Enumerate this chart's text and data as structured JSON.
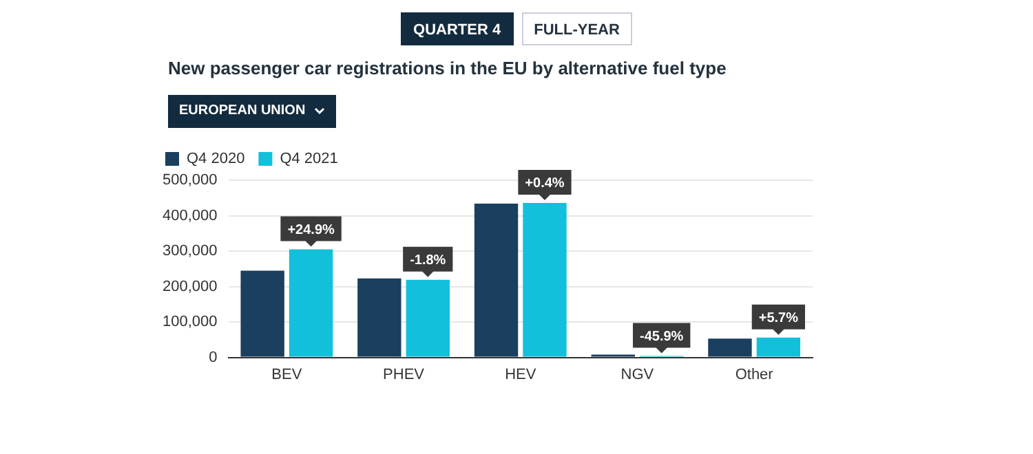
{
  "chart_data": {
    "type": "bar",
    "title": "New passenger car registrations in the EU by alternative fuel type",
    "categories": [
      "BEV",
      "PHEV",
      "HEV",
      "NGV",
      "Other"
    ],
    "series": [
      {
        "name": "Q4 2020",
        "color": "#1b3f5e",
        "values": [
          245000,
          223000,
          434000,
          8000,
          53000
        ]
      },
      {
        "name": "Q4 2021",
        "color": "#12c0dc",
        "values": [
          305000,
          219000,
          436000,
          4000,
          56000
        ]
      }
    ],
    "ylim": [
      0,
      500000
    ],
    "yticks": [
      {
        "value": 0,
        "label": "0"
      },
      {
        "value": 100000,
        "label": "100,000"
      },
      {
        "value": 200000,
        "label": "200,000"
      },
      {
        "value": 300000,
        "label": "300,000"
      },
      {
        "value": 400000,
        "label": "400,000"
      },
      {
        "value": 500000,
        "label": "500,000"
      }
    ],
    "grid": "y",
    "legend": "top left",
    "annotations": [
      "QUARTER 4",
      "FULL-YEAR",
      "EUROPEAN UNION",
      {
        "text": "+24.9%",
        "x": "BEV",
        "y": 305000
      },
      {
        "text": "-1.8%",
        "x": "PHEV",
        "y": 219000
      },
      {
        "text": "+0.4%",
        "x": "HEV",
        "y": 436000
      },
      {
        "text": "-45.9%",
        "x": "NGV",
        "y": 4000
      },
      {
        "text": "+5.7%",
        "x": "Other",
        "y": 56000
      }
    ]
  }
}
